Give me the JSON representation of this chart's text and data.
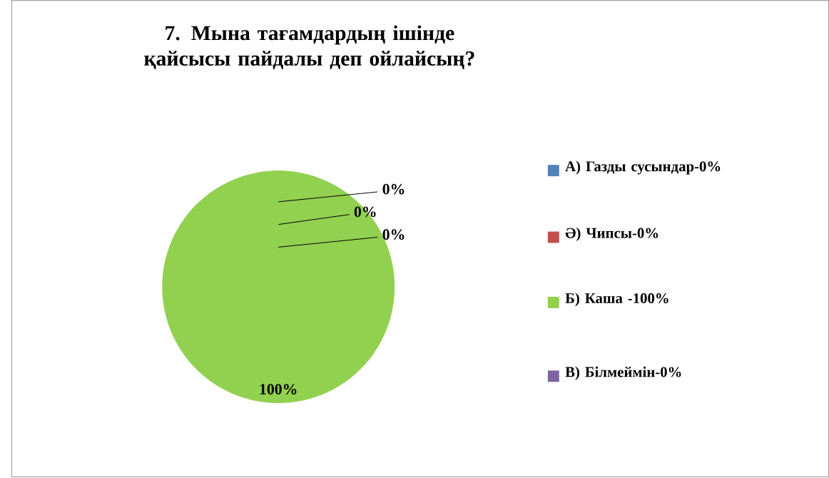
{
  "chart_data": {
    "type": "pie",
    "title": "7. Мына тағамдардың ішінде қайсысы пайдалы деп ойлайсың?",
    "categories": [
      "А) Газды сусындар-0%",
      "Ә) Чипсы-0%",
      "Б) Каша -100%",
      "В) Білмеймін-0%"
    ],
    "values": [
      0,
      0,
      100,
      0
    ],
    "colors": [
      "#4f81bd",
      "#c0504d",
      "#92d050",
      "#8064a2"
    ],
    "value_labels": [
      "0%",
      "0%",
      "100%",
      "0%"
    ],
    "legend": "right"
  }
}
